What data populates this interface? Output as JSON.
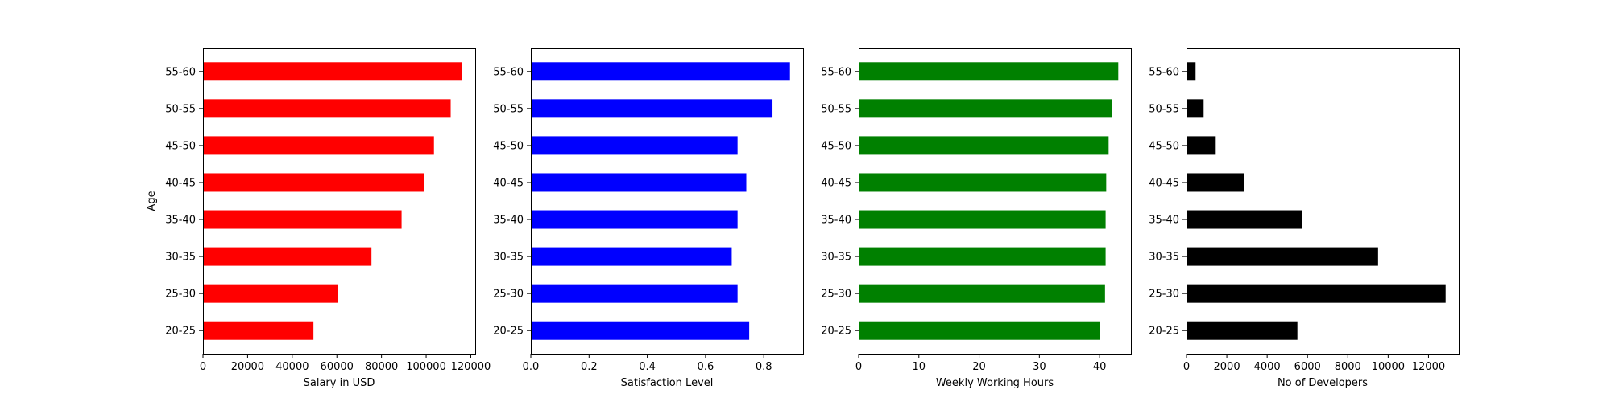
{
  "chart_data": [
    {
      "type": "bar",
      "orientation": "horizontal",
      "categories": [
        "20-25",
        "25-30",
        "30-35",
        "35-40",
        "40-45",
        "45-50",
        "50-55",
        "55-60"
      ],
      "values": [
        49500,
        60500,
        75500,
        89000,
        99000,
        103500,
        111000,
        116000
      ],
      "xlabel": "Salary in USD",
      "ylabel": "Age",
      "xlim": [
        0,
        122000
      ],
      "xticks": [
        0,
        20000,
        40000,
        60000,
        80000,
        100000,
        120000
      ],
      "xtick_labels": [
        "0",
        "20000",
        "40000",
        "60000",
        "80000",
        "100000",
        "120000"
      ],
      "color": "#ff0000",
      "grid": false
    },
    {
      "type": "bar",
      "orientation": "horizontal",
      "categories": [
        "20-25",
        "25-30",
        "30-35",
        "35-40",
        "40-45",
        "45-50",
        "50-55",
        "55-60"
      ],
      "values": [
        0.75,
        0.71,
        0.69,
        0.71,
        0.74,
        0.71,
        0.83,
        0.89
      ],
      "xlabel": "Satisfaction Level",
      "ylabel": "",
      "xlim": [
        0,
        0.935
      ],
      "xticks": [
        0,
        0.2,
        0.4,
        0.6,
        0.8
      ],
      "xtick_labels": [
        "0.0",
        "0.2",
        "0.4",
        "0.6",
        "0.8"
      ],
      "color": "#0000ff",
      "grid": false
    },
    {
      "type": "bar",
      "orientation": "horizontal",
      "categories": [
        "20-25",
        "25-30",
        "30-35",
        "35-40",
        "40-45",
        "45-50",
        "50-55",
        "55-60"
      ],
      "values": [
        40.0,
        40.9,
        41.0,
        41.0,
        41.1,
        41.5,
        42.1,
        43.1
      ],
      "xlabel": "Weekly Working Hours",
      "ylabel": "",
      "xlim": [
        0,
        45.2
      ],
      "xticks": [
        0,
        10,
        20,
        30,
        40
      ],
      "xtick_labels": [
        "0",
        "10",
        "20",
        "30",
        "40"
      ],
      "color": "#008000",
      "grid": false
    },
    {
      "type": "bar",
      "orientation": "horizontal",
      "categories": [
        "20-25",
        "25-30",
        "30-35",
        "35-40",
        "40-45",
        "45-50",
        "50-55",
        "55-60"
      ],
      "values": [
        5500,
        12850,
        9500,
        5750,
        2850,
        1450,
        850,
        450
      ],
      "xlabel": "No of Developers",
      "ylabel": "",
      "xlim": [
        0,
        13500
      ],
      "xticks": [
        0,
        2000,
        4000,
        6000,
        8000,
        10000,
        12000
      ],
      "xtick_labels": [
        "0",
        "2000",
        "4000",
        "6000",
        "8000",
        "10000",
        "12000"
      ],
      "color": "#000000",
      "grid": false
    }
  ]
}
